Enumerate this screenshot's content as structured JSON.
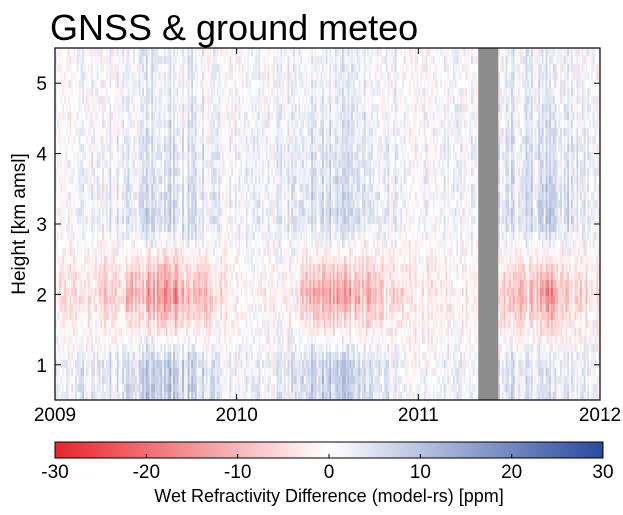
{
  "chart_data": {
    "type": "heatmap",
    "title": "GNSS & ground meteo",
    "xlabel": "",
    "ylabel": "Height [km amsl]",
    "x_ticks": [
      "2009",
      "2010",
      "2011",
      "2012"
    ],
    "xlim": [
      2009,
      2012
    ],
    "y_ticks": [
      "1",
      "2",
      "3",
      "4",
      "5"
    ],
    "ylim": [
      0.5,
      5.5
    ],
    "grid": false,
    "data_gap": {
      "x_start": 2011.33,
      "x_end": 2011.44
    },
    "colorbar": {
      "label": "Wet Refractivity Difference (model-rs) [ppm]",
      "ticks": [
        "-30",
        "-20",
        "-10",
        "0",
        "10",
        "20",
        "30"
      ],
      "range": [
        -30,
        30
      ],
      "colormap": [
        "#e8262c",
        "#ffffff",
        "#2a4aa0"
      ]
    },
    "values_note_heights": [
      1,
      2,
      3,
      4,
      5
    ],
    "seasonal_profiles": [
      {
        "x": 2009.0,
        "values": [
          2,
          -3,
          0,
          0,
          0
        ]
      },
      {
        "x": 2009.3,
        "values": [
          4,
          -6,
          3,
          2,
          1
        ]
      },
      {
        "x": 2009.55,
        "values": [
          8,
          -14,
          6,
          4,
          3
        ]
      },
      {
        "x": 2009.75,
        "values": [
          6,
          -11,
          5,
          3,
          2
        ]
      },
      {
        "x": 2010.0,
        "values": [
          1,
          -1,
          1,
          1,
          0
        ]
      },
      {
        "x": 2010.3,
        "values": [
          3,
          -3,
          3,
          2,
          1
        ]
      },
      {
        "x": 2010.5,
        "values": [
          9,
          -15,
          7,
          5,
          3
        ]
      },
      {
        "x": 2010.75,
        "values": [
          5,
          -8,
          4,
          3,
          2
        ]
      },
      {
        "x": 2011.0,
        "values": [
          1,
          -2,
          1,
          1,
          0
        ]
      },
      {
        "x": 2011.3,
        "values": [
          2,
          -3,
          2,
          2,
          1
        ]
      },
      {
        "x": 2011.5,
        "values": [
          5,
          -9,
          5,
          4,
          3
        ]
      },
      {
        "x": 2011.7,
        "values": [
          4,
          -13,
          7,
          5,
          3
        ]
      },
      {
        "x": 2012.0,
        "values": [
          1,
          -2,
          1,
          1,
          0
        ]
      }
    ]
  }
}
